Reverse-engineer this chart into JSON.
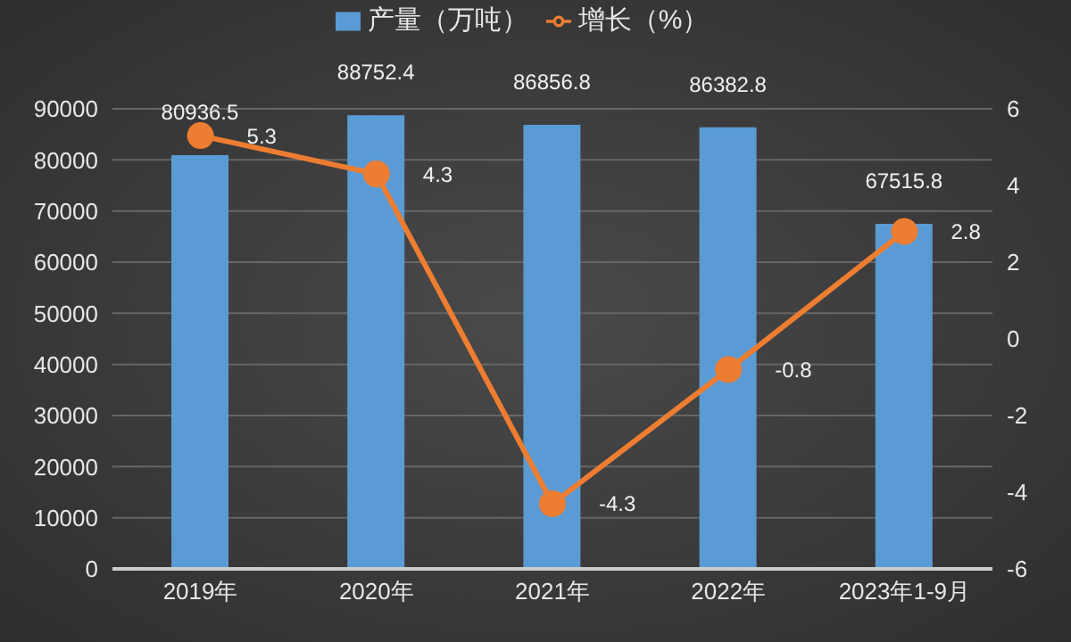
{
  "chart_data": {
    "type": "bar",
    "categories": [
      "2019年",
      "2020年",
      "2021年",
      "2022年",
      "2023年1-9月"
    ],
    "series": [
      {
        "name": "产量（万吨）",
        "color": "#5b9bd5",
        "values": [
          80936.5,
          88752.4,
          86856.8,
          86382.8,
          67515.8
        ]
      },
      {
        "name": "增长（%）",
        "type": "line",
        "axis": "y2",
        "color": "#ed7d31",
        "values": [
          5.3,
          4.3,
          -4.3,
          -0.8,
          2.8
        ]
      }
    ],
    "ylim": [
      0,
      90000
    ],
    "yticks": [
      0,
      10000,
      20000,
      30000,
      40000,
      50000,
      60000,
      70000,
      80000,
      90000
    ],
    "y2lim": [
      -6,
      6
    ],
    "y2ticks": [
      -6,
      -4,
      -2,
      0,
      2,
      4,
      6
    ],
    "grid": "y",
    "legend": "top",
    "marker": "circle",
    "data_labels": true
  }
}
